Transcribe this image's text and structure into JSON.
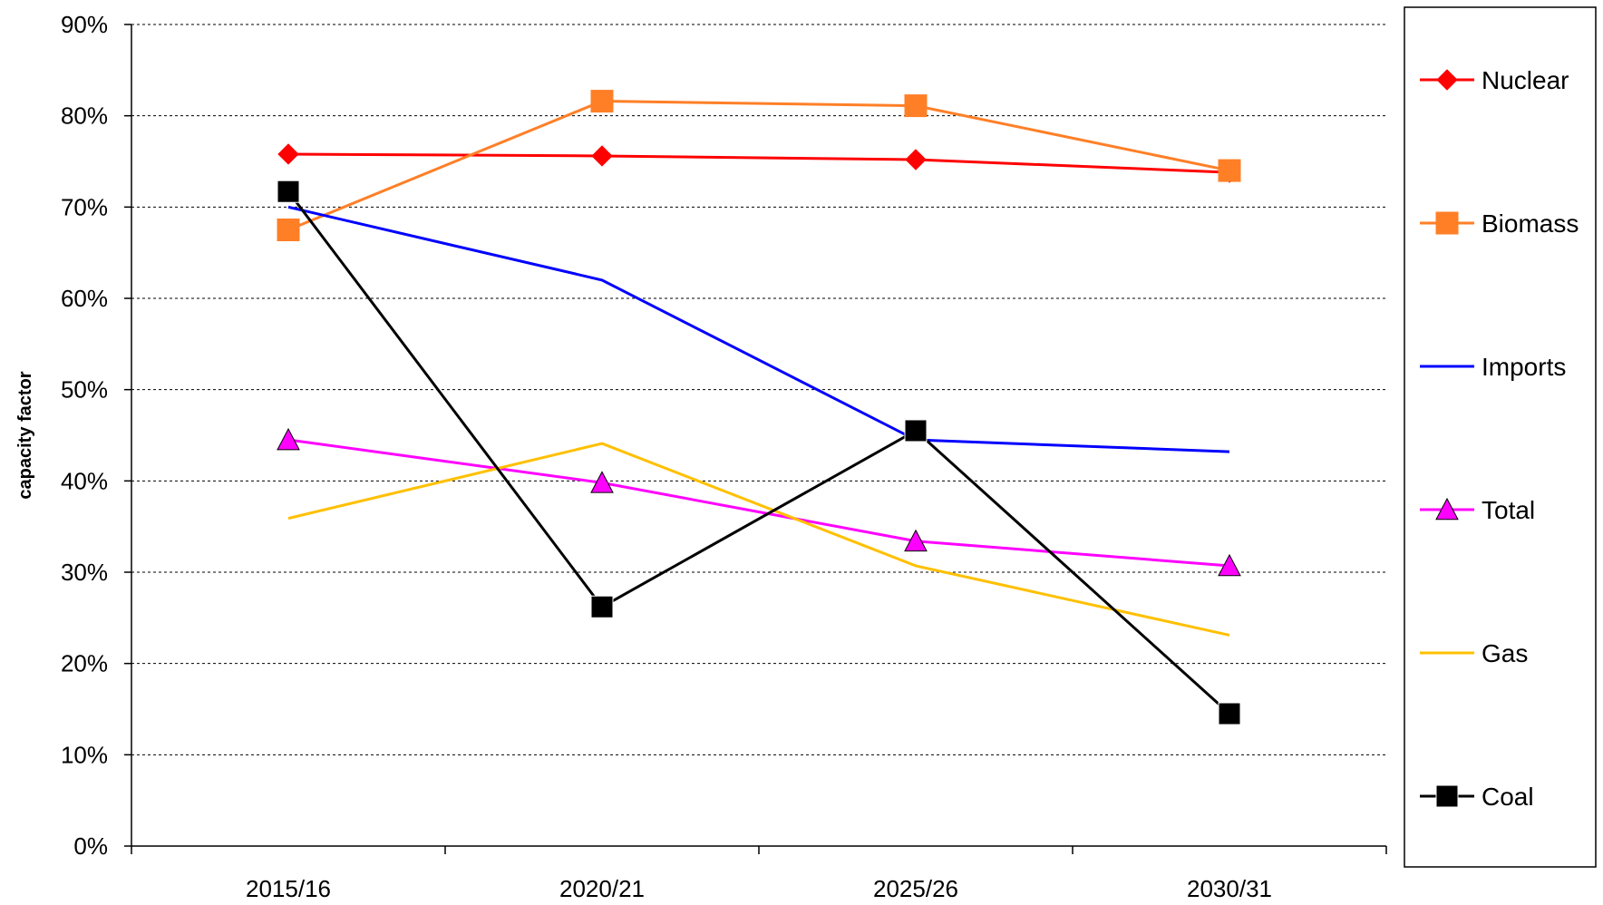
{
  "chart_data": {
    "type": "line",
    "title": "",
    "xlabel": "",
    "ylabel": "capacity factor",
    "categories": [
      "2015/16",
      "2020/21",
      "2025/26",
      "2030/31"
    ],
    "ylim": [
      0,
      90
    ],
    "yticks": [
      0,
      10,
      20,
      30,
      40,
      50,
      60,
      70,
      80,
      90
    ],
    "ytick_labels": [
      "0%",
      "10%",
      "20%",
      "30%",
      "40%",
      "50%",
      "60%",
      "70%",
      "80%",
      "90%"
    ],
    "grid": "horizontal dashed",
    "legend_position": "right",
    "series": [
      {
        "name": "Nuclear",
        "color": "#FF0000",
        "marker": "diamond",
        "values": [
          75.8,
          75.6,
          75.2,
          73.8
        ]
      },
      {
        "name": "Biomass",
        "color": "#FF7F27",
        "marker": "square",
        "values": [
          67.5,
          81.6,
          81.1,
          74.0
        ]
      },
      {
        "name": "Imports",
        "color": "#0000FF",
        "marker": "none",
        "values": [
          70.0,
          62.0,
          44.5,
          43.2
        ]
      },
      {
        "name": "Total",
        "color": "#FF00FF",
        "marker": "triangle",
        "values": [
          44.5,
          39.8,
          33.4,
          30.7
        ]
      },
      {
        "name": "Gas",
        "color": "#FFC000",
        "marker": "none",
        "values": [
          35.9,
          44.1,
          30.7,
          23.1
        ]
      },
      {
        "name": "Coal",
        "color": "#000000",
        "marker": "square",
        "values": [
          71.7,
          26.2,
          45.5,
          14.5
        ]
      }
    ]
  }
}
